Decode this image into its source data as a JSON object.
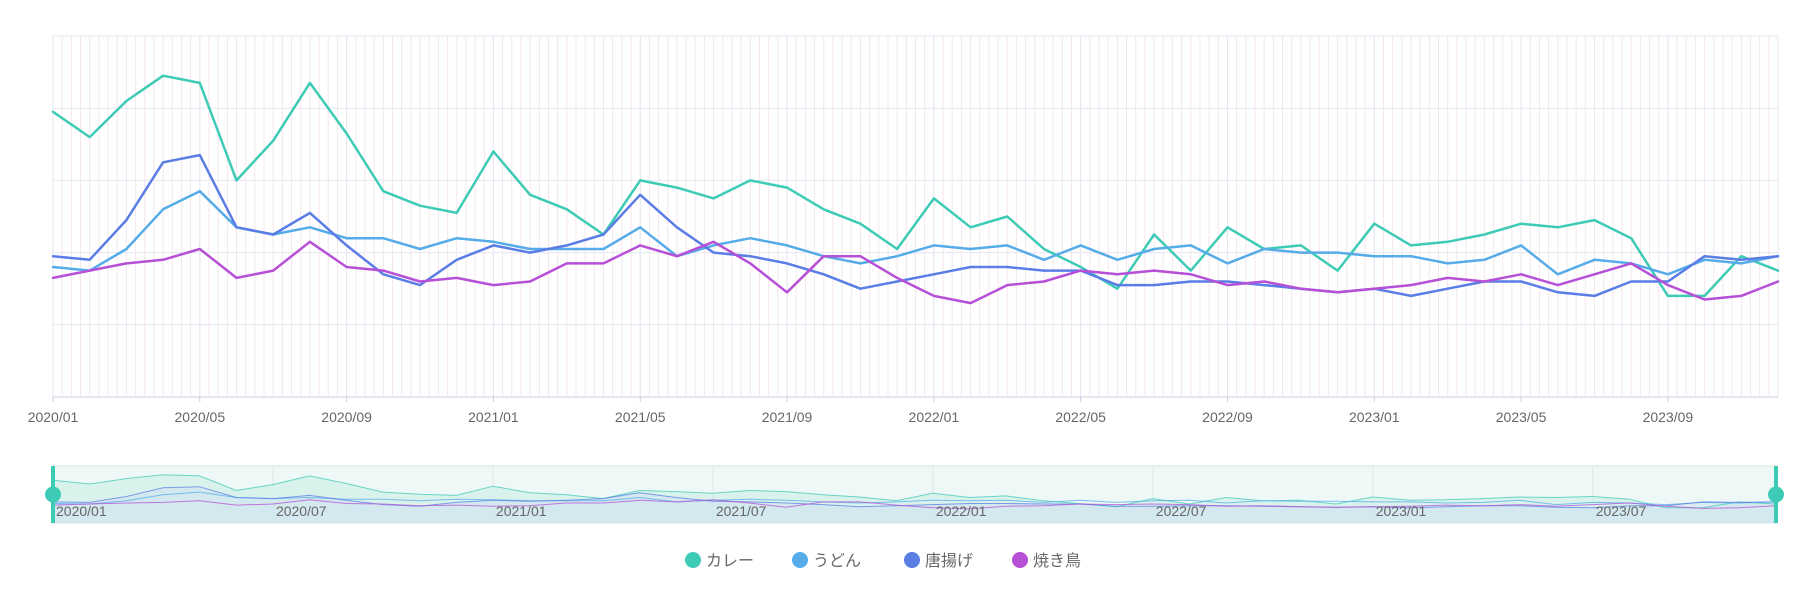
{
  "chart_data": {
    "type": "line",
    "title": "",
    "xlabel": "",
    "ylabel": "",
    "ylim": [
      0,
      100
    ],
    "grid": true,
    "legend": "bottom-center",
    "x": [
      "2020/01",
      "2020/02",
      "2020/03",
      "2020/04",
      "2020/05",
      "2020/06",
      "2020/07",
      "2020/08",
      "2020/09",
      "2020/10",
      "2020/11",
      "2020/12",
      "2021/01",
      "2021/02",
      "2021/03",
      "2021/04",
      "2021/05",
      "2021/06",
      "2021/07",
      "2021/08",
      "2021/09",
      "2021/10",
      "2021/11",
      "2021/12",
      "2022/01",
      "2022/02",
      "2022/03",
      "2022/04",
      "2022/05",
      "2022/06",
      "2022/07",
      "2022/08",
      "2022/09",
      "2022/10",
      "2022/11",
      "2022/12",
      "2023/01",
      "2023/02",
      "2023/03",
      "2023/04",
      "2023/05",
      "2023/06",
      "2023/07",
      "2023/08",
      "2023/09",
      "2023/10",
      "2023/11",
      "2023/12"
    ],
    "x_tick_labels": [
      "2020/01",
      "2020/05",
      "2020/09",
      "2021/01",
      "2021/05",
      "2021/09",
      "2022/01",
      "2022/05",
      "2022/09",
      "2023/01",
      "2023/05",
      "2023/09"
    ],
    "series": [
      {
        "name": "カレー",
        "color": "#3ecbb6",
        "values": [
          79,
          72,
          82,
          89,
          87,
          60,
          71,
          87,
          73,
          57,
          53,
          51,
          68,
          56,
          52,
          45,
          60,
          58,
          55,
          60,
          58,
          52,
          48,
          41,
          55,
          47,
          50,
          41,
          36,
          30,
          45,
          35,
          47,
          41,
          42,
          35,
          48,
          42,
          43,
          45,
          48,
          47,
          49,
          44,
          28,
          28,
          39,
          35
        ]
      },
      {
        "name": "うどん",
        "color": "#56ace8",
        "values": [
          36,
          35,
          41,
          52,
          57,
          47,
          45,
          47,
          44,
          44,
          41,
          44,
          43,
          41,
          41,
          41,
          47,
          39,
          42,
          44,
          42,
          39,
          37,
          39,
          42,
          41,
          42,
          38,
          42,
          38,
          41,
          42,
          37,
          41,
          40,
          40,
          39,
          39,
          37,
          38,
          42,
          34,
          38,
          37,
          34,
          38,
          37,
          39
        ]
      },
      {
        "name": "唐揚げ",
        "color": "#5a7de6",
        "values": [
          39,
          38,
          49,
          65,
          67,
          47,
          45,
          51,
          42,
          34,
          31,
          38,
          42,
          40,
          42,
          45,
          56,
          47,
          40,
          39,
          37,
          34,
          30,
          32,
          34,
          36,
          36,
          35,
          35,
          31,
          31,
          32,
          32,
          31,
          30,
          29,
          30,
          28,
          30,
          32,
          32,
          29,
          28,
          32,
          32,
          39,
          38,
          39
        ]
      },
      {
        "name": "焼き鳥",
        "color": "#b650d6",
        "values": [
          33,
          35,
          37,
          38,
          41,
          33,
          35,
          43,
          36,
          35,
          32,
          33,
          31,
          32,
          37,
          37,
          42,
          39,
          43,
          37,
          29,
          39,
          39,
          33,
          28,
          26,
          31,
          32,
          35,
          34,
          35,
          34,
          31,
          32,
          30,
          29,
          30,
          31,
          33,
          32,
          34,
          31,
          34,
          37,
          31,
          27,
          28,
          32
        ]
      }
    ]
  }
}
